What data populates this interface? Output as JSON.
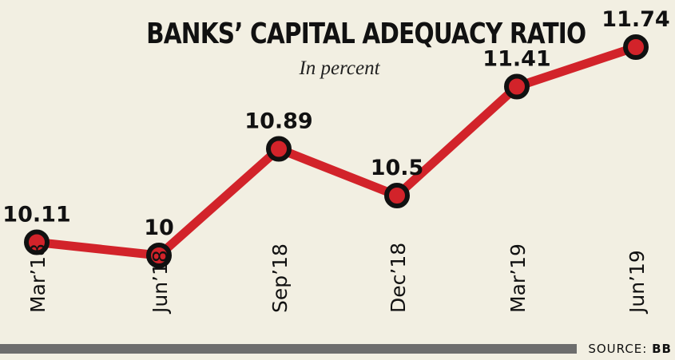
{
  "chart_data": {
    "type": "line",
    "title": "BANKS’ CAPITAL ADEQUACY RATIO",
    "subtitle": "In percent",
    "categories": [
      "Mar’18",
      "Jun’18",
      "Sep’18",
      "Dec’18",
      "Mar’19",
      "Jun’19"
    ],
    "values": [
      10.11,
      10,
      10.89,
      10.5,
      11.41,
      11.74
    ],
    "data_labels": [
      "10.11",
      "10",
      "10.89",
      "10.5",
      "11.41",
      "11.74"
    ],
    "ylim": [
      9.6,
      12.0
    ],
    "grid": false,
    "legend": "none",
    "colors": {
      "line": "#d2232a",
      "marker_edge": "#111111",
      "marker_fill": "#d2232a",
      "background": "#f2efe2"
    }
  },
  "source": {
    "label": "SOURCE:",
    "value": "BB"
  }
}
